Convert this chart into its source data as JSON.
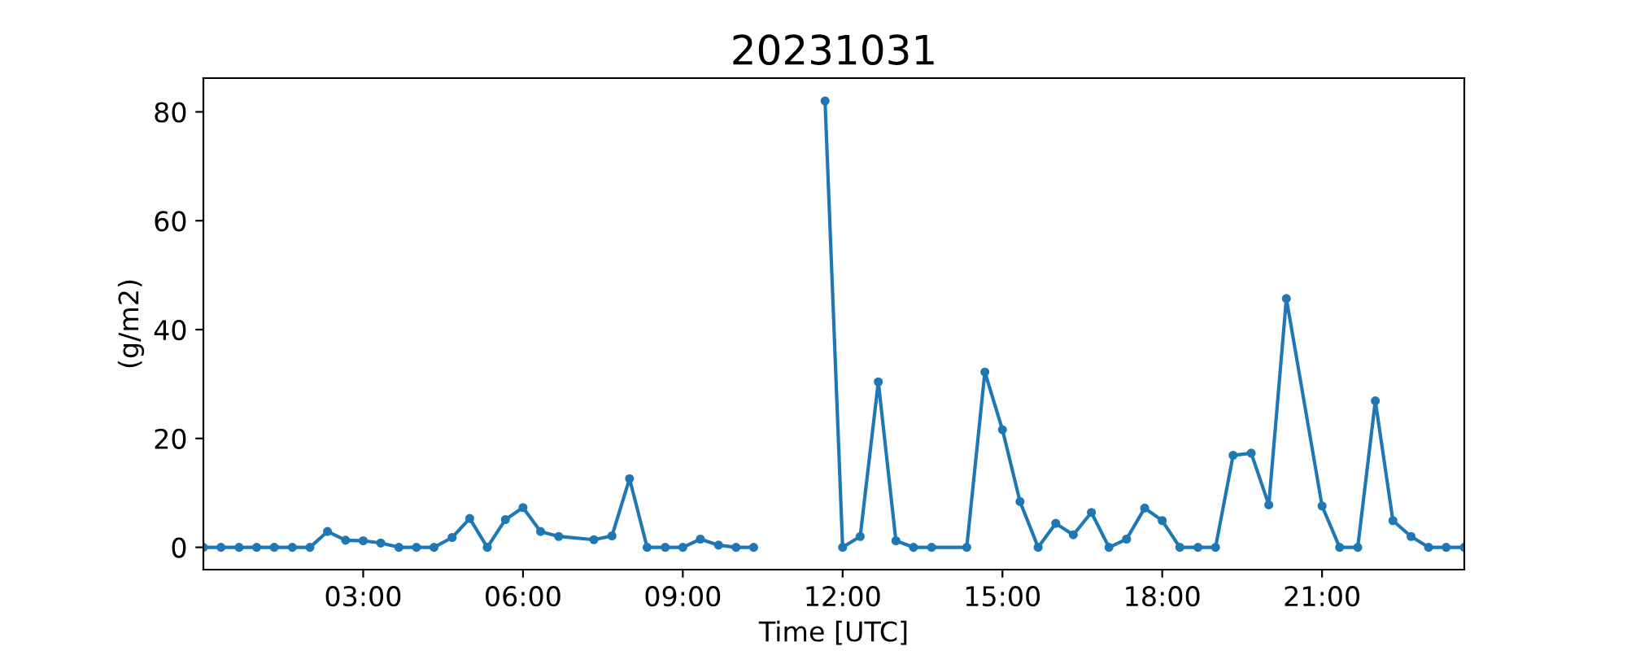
{
  "chart_data": {
    "type": "line",
    "title": "20231031",
    "xlabel": "Time [UTC]",
    "ylabel": "(g/m2)",
    "x": [
      0,
      0.33,
      0.67,
      1.0,
      1.33,
      1.67,
      2.0,
      2.33,
      2.67,
      3.0,
      3.33,
      3.67,
      4.0,
      4.33,
      4.67,
      5.0,
      5.33,
      5.67,
      6.0,
      6.33,
      6.67,
      7.33,
      7.67,
      8.0,
      8.33,
      8.67,
      9.0,
      9.33,
      9.67,
      10.0,
      10.33,
      11.0,
      11.67,
      12.0,
      12.33,
      12.67,
      13.0,
      13.33,
      13.67,
      14.33,
      14.67,
      15.0,
      15.33,
      15.67,
      16.0,
      16.33,
      16.67,
      17.0,
      17.33,
      17.67,
      18.0,
      18.33,
      18.67,
      19.0,
      19.33,
      19.67,
      20.0,
      20.33,
      21.0,
      21.33,
      21.67,
      22.0,
      22.33,
      22.67,
      23.0,
      23.33,
      23.67
    ],
    "series": [
      {
        "color": "#1f77b4",
        "values": [
          0,
          0,
          0,
          0,
          0,
          0,
          0,
          2.9,
          1.3,
          1.2,
          0.8,
          0,
          0,
          0,
          1.8,
          5.3,
          0,
          5.1,
          7.3,
          2.9,
          2.0,
          1.4,
          2.1,
          12.6,
          0,
          0,
          0,
          1.5,
          0.4,
          0,
          0,
          null,
          82.0,
          0,
          2.0,
          30.4,
          1.2,
          0,
          0,
          0,
          32.2,
          21.6,
          8.4,
          0,
          4.4,
          2.3,
          6.4,
          0,
          1.5,
          7.2,
          4.9,
          0,
          0,
          0,
          16.9,
          17.3,
          7.8,
          45.7,
          7.6,
          0,
          0,
          26.9,
          4.9,
          2.0,
          0,
          0,
          0
        ]
      }
    ],
    "xlim": [
      0,
      23.67
    ],
    "ylim": [
      -4.1,
      86.2
    ],
    "xticks": [
      {
        "value": 3,
        "label": "03:00"
      },
      {
        "value": 6,
        "label": "06:00"
      },
      {
        "value": 9,
        "label": "09:00"
      },
      {
        "value": 12,
        "label": "12:00"
      },
      {
        "value": 15,
        "label": "15:00"
      },
      {
        "value": 18,
        "label": "18:00"
      },
      {
        "value": 21,
        "label": "21:00"
      }
    ],
    "yticks": [
      0,
      20,
      40,
      60,
      80
    ],
    "marker": "circle",
    "grid": false,
    "legend": false
  }
}
